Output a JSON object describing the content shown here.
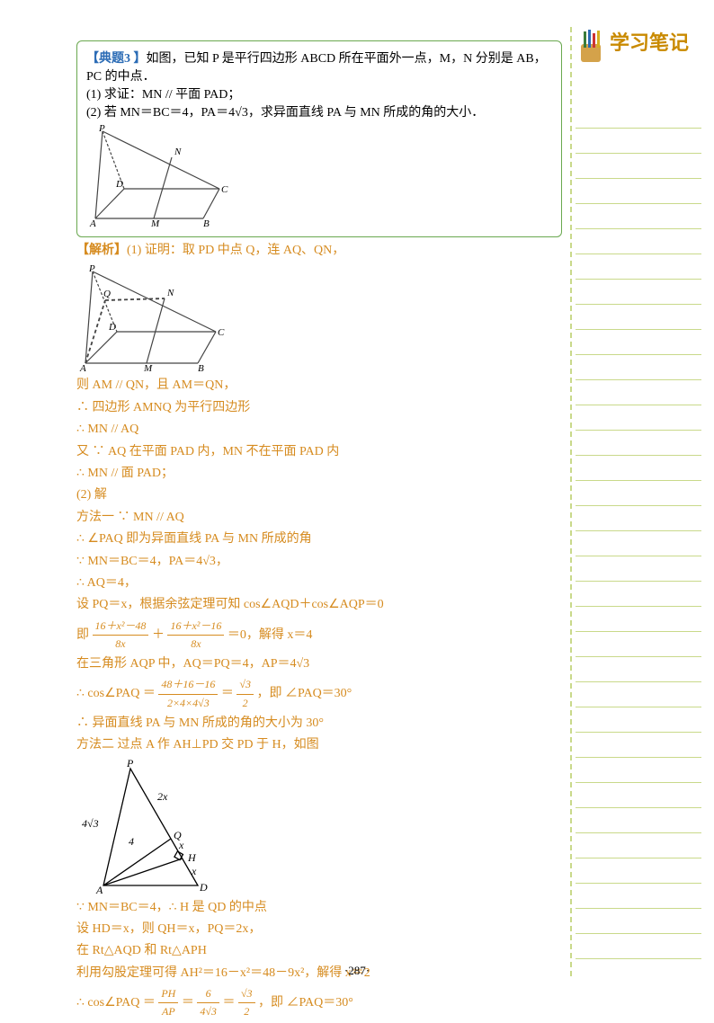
{
  "problem": {
    "tag": "【典题3 】",
    "stem1": "如图，已知 P 是平行四边形 ABCD 所在平面外一点，M，N 分别是 AB，PC 的中点．",
    "q1": "(1) 求证：MN // 平面 PAD；",
    "q2": "(2) 若 MN＝BC＝4，PA＝4√3，求异面直线 PA 与 MN 所成的角的大小．"
  },
  "figure1": {
    "labels": {
      "P": "P",
      "N": "N",
      "D": "D",
      "C": "C",
      "A": "A",
      "M": "M",
      "B": "B"
    },
    "stroke": "#444",
    "fill": "none"
  },
  "solution": {
    "tag": "【解析】",
    "l1": "(1) 证明：取 PD 中点 Q，连 AQ、QN，",
    "fig2_labels": {
      "P": "P",
      "Q": "Q",
      "N": "N",
      "D": "D",
      "C": "C",
      "A": "A",
      "M": "M",
      "B": "B"
    },
    "l2": "则 AM // QN，且 AM＝QN，",
    "l3": "∴ 四边形 AMNQ 为平行四边形",
    "l4": "∴ MN // AQ",
    "l5": "又 ∵ AQ 在平面 PAD 内，MN 不在平面 PAD 内",
    "l6": "∴ MN // 面 PAD；",
    "l7": "(2) 解",
    "l8": "方法一  ∵ MN // AQ",
    "l9": "∴ ∠PAQ 即为异面直线 PA 与 MN 所成的角",
    "l10": "∵ MN＝BC＝4，PA＝4√3，",
    "l11": "∴ AQ＝4，",
    "l12": "设 PQ＝x，根据余弦定理可知 cos∠AQD＋cos∠AQP＝0",
    "l13a": "即 ",
    "frac1_num": "16＋x²－48",
    "frac1_den": "8x",
    "plus": " ＋ ",
    "frac2_num": "16＋x²－16",
    "frac2_den": "8x",
    "l13b": " ＝0，解得 x＝4",
    "l14": "在三角形 AQP 中，AQ＝PQ＝4，AP＝4√3",
    "l15a": "∴ cos∠PAQ ＝ ",
    "frac3_num": "48＋16－16",
    "frac3_den": "2×4×4√3",
    "eq": " ＝ ",
    "frac4_num": "√3",
    "frac4_den": "2",
    "l15b": "，即 ∠PAQ＝30°",
    "l16": "∴ 异面直线 PA 与 MN 所成的角的大小为 30°",
    "l17": "方法二  过点 A 作 AH⊥PD 交 PD 于 H，如图",
    "fig3_labels": {
      "P": "P",
      "Q": "Q",
      "H": "H",
      "D": "D",
      "A": "A",
      "s2x": "2x",
      "s4r3": "4√3",
      "s4": "4",
      "sx1": "x",
      "sx2": "x"
    },
    "l18": "∵ MN＝BC＝4，∴ H 是 QD 的中点",
    "l19": "设 HD＝x，则 QH＝x，PQ＝2x，",
    "l20": "在 Rt△AQD 和 Rt△APH",
    "l21": "利用勾股定理可得 AH²＝16－x²＝48－9x²，解得 x＝2",
    "l22a": "∴ cos∠PAQ ＝ ",
    "frac5_num": "PH",
    "frac5_den": "AP",
    "frac6_num": "6",
    "frac6_den": "4√3",
    "frac7_num": "√3",
    "frac7_den": "2",
    "l22b": "，即 ∠PAQ＝30°"
  },
  "sidebar": {
    "title": "学习笔记",
    "line_color": "#c9d98a",
    "line_count": 34
  },
  "pagenum": "·287·",
  "colors": {
    "blue": "#2a6bb5",
    "orange": "#d68b1f",
    "box_border": "#6aa84f",
    "side_title": "#c98a00"
  }
}
